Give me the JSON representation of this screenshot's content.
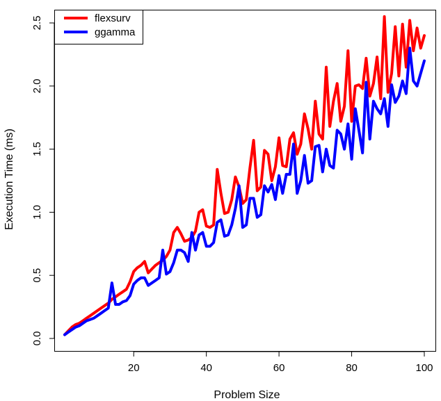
{
  "chart_data": {
    "type": "line",
    "title": "",
    "xlabel": "Problem Size",
    "ylabel": "Execution Time (ms)",
    "xlim": [
      1,
      100
    ],
    "ylim": [
      0.0,
      2.55
    ],
    "xticks": [
      20,
      40,
      60,
      80,
      100
    ],
    "xtick_labels": [
      "20",
      "40",
      "60",
      "80",
      "100"
    ],
    "yticks": [
      0.0,
      0.5,
      1.0,
      1.5,
      2.0,
      2.5
    ],
    "ytick_labels": [
      "0.0",
      "0.5",
      "1.0",
      "1.5",
      "2.0",
      "2.5"
    ],
    "grid": false,
    "legend_position": "top-left",
    "x": [
      1,
      2,
      3,
      4,
      5,
      6,
      7,
      8,
      9,
      10,
      11,
      12,
      13,
      14,
      15,
      16,
      17,
      18,
      19,
      20,
      21,
      22,
      23,
      24,
      25,
      26,
      27,
      28,
      29,
      30,
      31,
      32,
      33,
      34,
      35,
      36,
      37,
      38,
      39,
      40,
      41,
      42,
      43,
      44,
      45,
      46,
      47,
      48,
      49,
      50,
      51,
      52,
      53,
      54,
      55,
      56,
      57,
      58,
      59,
      60,
      61,
      62,
      63,
      64,
      65,
      66,
      67,
      68,
      69,
      70,
      71,
      72,
      73,
      74,
      75,
      76,
      77,
      78,
      79,
      80,
      81,
      82,
      83,
      84,
      85,
      86,
      87,
      88,
      89,
      90,
      91,
      92,
      93,
      94,
      95,
      96,
      97,
      98,
      99,
      100
    ],
    "series": [
      {
        "name": "flexsurv",
        "color": "#ff0000",
        "values": [
          0.03,
          0.06,
          0.09,
          0.11,
          0.12,
          0.14,
          0.16,
          0.18,
          0.2,
          0.22,
          0.24,
          0.26,
          0.28,
          0.31,
          0.33,
          0.35,
          0.37,
          0.39,
          0.45,
          0.53,
          0.56,
          0.58,
          0.61,
          0.52,
          0.55,
          0.58,
          0.6,
          0.62,
          0.65,
          0.7,
          0.84,
          0.88,
          0.83,
          0.77,
          0.78,
          0.8,
          0.85,
          1.0,
          1.02,
          0.89,
          0.88,
          0.9,
          1.34,
          1.15,
          0.99,
          1.0,
          1.1,
          1.28,
          1.2,
          1.07,
          1.1,
          1.35,
          1.57,
          1.17,
          1.2,
          1.49,
          1.46,
          1.25,
          1.36,
          1.59,
          1.37,
          1.36,
          1.58,
          1.63,
          1.46,
          1.54,
          1.78,
          1.66,
          1.5,
          1.88,
          1.62,
          1.58,
          2.15,
          1.68,
          1.88,
          2.02,
          1.72,
          1.84,
          2.28,
          1.72,
          2.0,
          2.01,
          1.98,
          2.22,
          1.92,
          2.02,
          2.23,
          1.9,
          2.55,
          1.95,
          2.1,
          2.47,
          2.08,
          2.49,
          2.15,
          2.52,
          2.28,
          2.46,
          2.3,
          2.4
        ]
      },
      {
        "name": "ggamma",
        "color": "#0000ff",
        "values": [
          0.03,
          0.05,
          0.07,
          0.09,
          0.1,
          0.12,
          0.14,
          0.15,
          0.16,
          0.18,
          0.2,
          0.22,
          0.24,
          0.44,
          0.27,
          0.27,
          0.29,
          0.3,
          0.34,
          0.43,
          0.46,
          0.48,
          0.48,
          0.42,
          0.44,
          0.46,
          0.48,
          0.7,
          0.51,
          0.53,
          0.6,
          0.7,
          0.7,
          0.68,
          0.61,
          0.84,
          0.7,
          0.82,
          0.84,
          0.73,
          0.73,
          0.76,
          0.92,
          0.94,
          0.81,
          0.82,
          0.9,
          1.03,
          1.21,
          0.88,
          0.9,
          1.11,
          1.11,
          0.96,
          0.98,
          1.21,
          1.16,
          1.22,
          1.1,
          1.29,
          1.15,
          1.3,
          1.3,
          1.54,
          1.15,
          1.25,
          1.45,
          1.23,
          1.25,
          1.52,
          1.53,
          1.32,
          1.5,
          1.37,
          1.35,
          1.65,
          1.62,
          1.5,
          1.7,
          1.42,
          1.82,
          1.65,
          1.47,
          2.03,
          1.58,
          1.88,
          1.82,
          1.78,
          1.9,
          1.68,
          2.01,
          1.87,
          1.92,
          2.04,
          1.94,
          2.3,
          2.04,
          2.0,
          2.1,
          2.2
        ]
      }
    ]
  }
}
